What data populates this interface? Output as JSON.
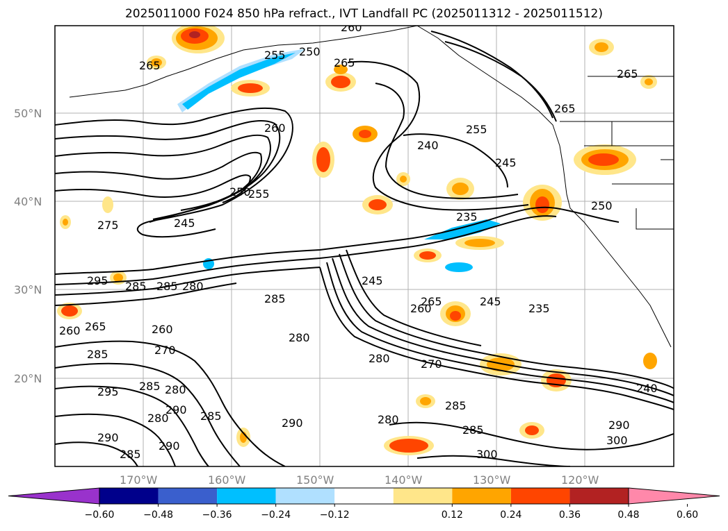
{
  "title": "2025011000 F024 850 hPa refract., IVT Landfall PC (2025011312 - 2025011512)",
  "lat_labels": [
    "50°N",
    "40°N",
    "30°N",
    "20°N"
  ],
  "lon_labels": [
    "170°W",
    "160°W",
    "150°W",
    "140°W",
    "130°W",
    "120°W"
  ],
  "contour_labels": [
    "265",
    "255",
    "250",
    "265",
    "260",
    "260",
    "255",
    "240",
    "245",
    "265",
    "265",
    "250",
    "255",
    "245",
    "275",
    "235",
    "250",
    "295",
    "285",
    "285",
    "280",
    "245",
    "285",
    "260",
    "265",
    "245",
    "235",
    "260",
    "265",
    "270",
    "280",
    "260",
    "285",
    "280",
    "270",
    "295",
    "285",
    "280",
    "290",
    "280",
    "285",
    "290",
    "290",
    "280",
    "285",
    "285",
    "290",
    "300",
    "240",
    "285",
    "290",
    "300"
  ],
  "colorbar": {
    "ticks": [
      "−0.60",
      "−0.48",
      "−0.36",
      "−0.24",
      "−0.12",
      "0.12",
      "0.24",
      "0.36",
      "0.48",
      "0.60"
    ],
    "colors": [
      "#9932cc",
      "#00008b",
      "#3a5fcd",
      "#00bfff",
      "#b0e0ff",
      "#ffffff",
      "#ffe68a",
      "#ffa500",
      "#ff4500",
      "#b22222",
      "#ff88aa"
    ]
  }
}
